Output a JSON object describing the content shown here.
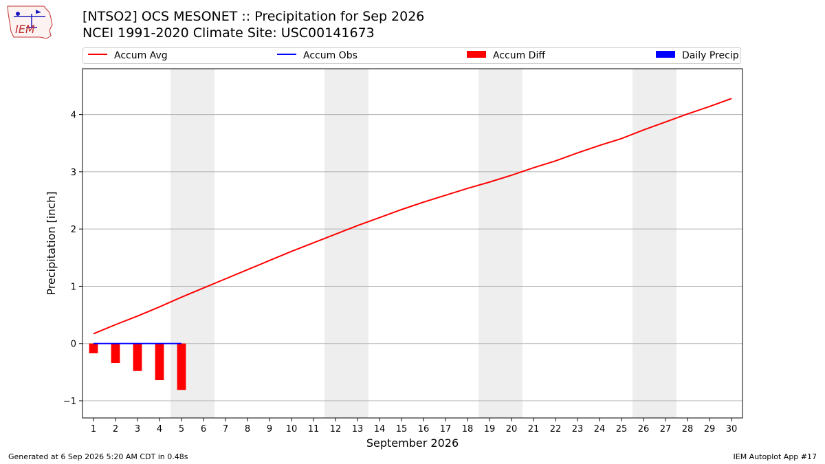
{
  "header": {
    "title_line1": "[NTSO2] OCS MESONET :: Precipitation for Sep 2026",
    "title_line2": "NCEI 1991-2020 Climate Site: USC00141673",
    "logo_text": "IEM"
  },
  "legend": {
    "items": [
      {
        "label": "Accum Avg",
        "color": "#ff0000",
        "kind": "line"
      },
      {
        "label": "Accum Obs",
        "color": "#0000ff",
        "kind": "line"
      },
      {
        "label": "Accum Diff",
        "color": "#ff0000",
        "kind": "box"
      },
      {
        "label": "Daily Precip",
        "color": "#0000ff",
        "kind": "box"
      }
    ]
  },
  "footer": {
    "generated": "Generated at 6 Sep 2026 5:20 AM CDT in 0.48s",
    "app": "IEM Autoplot App #17"
  },
  "chart_data": {
    "type": "line",
    "xlabel": "September 2026",
    "ylabel": "Precipitation [inch]",
    "xlim": [
      0.5,
      30.5
    ],
    "ylim": [
      -1.3,
      4.8
    ],
    "yticks": [
      -1,
      0,
      1,
      2,
      3,
      4
    ],
    "ytick_labels": [
      "−1",
      "0",
      "1",
      "2",
      "3",
      "4"
    ],
    "xticks": [
      1,
      2,
      3,
      4,
      5,
      6,
      7,
      8,
      9,
      10,
      11,
      12,
      13,
      14,
      15,
      16,
      17,
      18,
      19,
      20,
      21,
      22,
      23,
      24,
      25,
      26,
      27,
      28,
      29,
      30
    ],
    "grid": "horizontal",
    "weekend_shading": [
      [
        4.5,
        6.5
      ],
      [
        11.5,
        13.5
      ],
      [
        18.5,
        20.5
      ],
      [
        25.5,
        27.5
      ]
    ],
    "shade_color": "#eeeeee",
    "series": [
      {
        "name": "Accum Avg",
        "color": "#ff0000",
        "x": [
          1,
          2,
          3,
          4,
          5,
          6,
          7,
          8,
          9,
          10,
          11,
          12,
          13,
          14,
          15,
          16,
          17,
          18,
          19,
          20,
          21,
          22,
          23,
          24,
          25,
          26,
          27,
          28,
          29,
          30
        ],
        "values": [
          0.17,
          0.33,
          0.48,
          0.64,
          0.81,
          0.97,
          1.13,
          1.29,
          1.45,
          1.61,
          1.76,
          1.91,
          2.06,
          2.2,
          2.34,
          2.47,
          2.59,
          2.71,
          2.82,
          2.94,
          3.07,
          3.19,
          3.33,
          3.46,
          3.58,
          3.73,
          3.87,
          4.01,
          4.14,
          4.28
        ]
      },
      {
        "name": "Accum Obs",
        "color": "#0000ff",
        "x": [
          1,
          2,
          3,
          4,
          5
        ],
        "values": [
          0,
          0,
          0,
          0,
          0
        ]
      },
      {
        "name": "Accum Diff",
        "type": "bar",
        "color": "#ff0000",
        "x": [
          1,
          2,
          3,
          4,
          5
        ],
        "values": [
          -0.17,
          -0.34,
          -0.48,
          -0.64,
          -0.81
        ]
      },
      {
        "name": "Daily Precip",
        "type": "bar",
        "color": "#0000ff",
        "x": [
          1,
          2,
          3,
          4,
          5
        ],
        "values": [
          0,
          0,
          0,
          0,
          0
        ]
      }
    ]
  }
}
